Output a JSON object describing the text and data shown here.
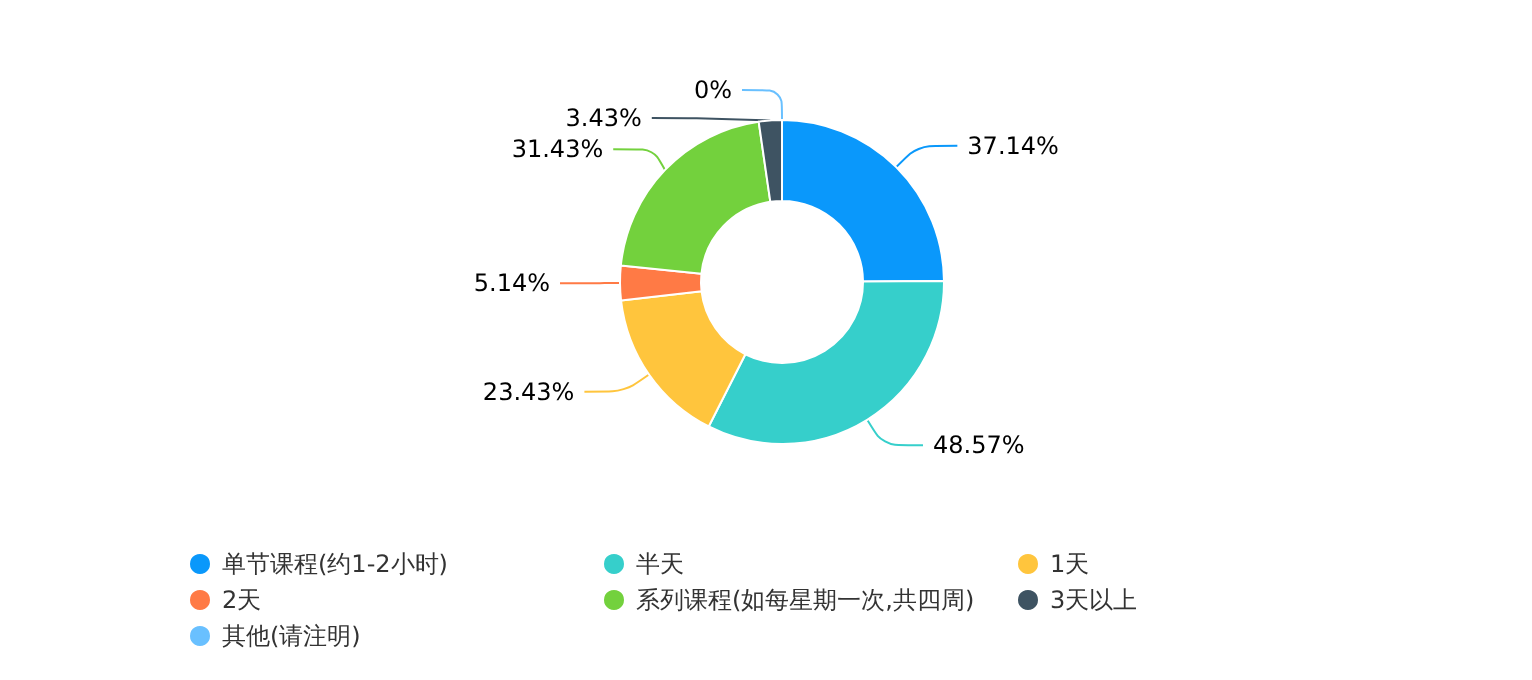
{
  "chart_data": {
    "type": "donut",
    "categories": [
      "单节课程(约1-2小时)",
      "半天",
      "1天",
      "2天",
      "系列课程(如每星期一次,共四周)",
      "3天以上",
      "其他(请注明)"
    ],
    "values": [
      37.14,
      48.57,
      23.43,
      5.14,
      31.43,
      3.43,
      0
    ],
    "colors": [
      "#0a98fb",
      "#36cfcb",
      "#ffc53d",
      "#ff7a45",
      "#73d13d",
      "#3e5362",
      "#69c0ff"
    ],
    "value_labels": [
      "37.14%",
      "48.57%",
      "23.43%",
      "5.14%",
      "31.43%",
      "3.43%",
      "0%"
    ],
    "legend": "bottom"
  }
}
